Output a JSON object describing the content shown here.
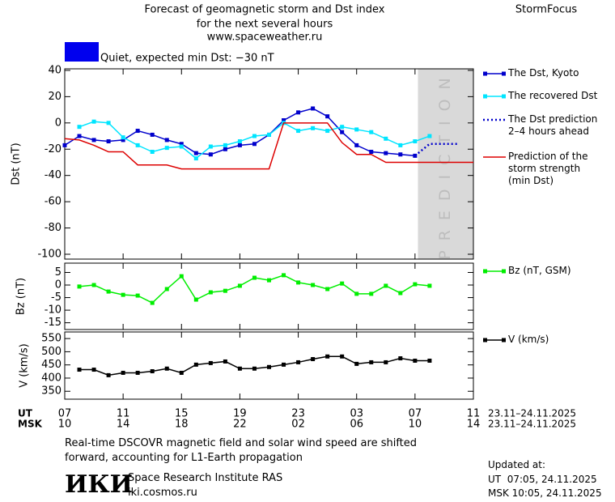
{
  "header": {
    "title_lines": [
      "Forecast of geomagnetic storm and Dst index",
      "for the next several hours",
      "www.spaceweather.ru"
    ],
    "brand": "StormFocus",
    "status": "Quiet, expected min Dst: −30 nT",
    "status_color": "#0000ee"
  },
  "chart_data": [
    {
      "type": "line",
      "y_label": "Dst (nT)",
      "xlim": [
        0,
        28
      ],
      "ylim": [
        -103.7,
        41.2
      ],
      "yticks": [
        40,
        20,
        0,
        -20,
        -40,
        -60,
        -80,
        -100
      ],
      "prediction_band": {
        "xlim": [
          24.2,
          28
        ],
        "label": "PREDICTION",
        "color": "#d9d9d9"
      },
      "series": [
        {
          "name": "The Dst, Kyoto",
          "color": "#0000cc",
          "marker": "square",
          "dash": false,
          "x": [
            0,
            1,
            2,
            3,
            4,
            5,
            6,
            7,
            8,
            9,
            10,
            11,
            12,
            13,
            14,
            15,
            16,
            17,
            18,
            19,
            20,
            21,
            22,
            23,
            24
          ],
          "values": [
            -17,
            -10,
            -13,
            -14,
            -13,
            -6,
            -9,
            -13,
            -16,
            -23,
            -24,
            -20,
            -17,
            -16,
            -9,
            2,
            8,
            11,
            5,
            -7,
            -17,
            -22,
            -23,
            -24,
            -25
          ]
        },
        {
          "name": "The recovered Dst",
          "color": "#00e5ff",
          "marker": "square",
          "dash": false,
          "x": [
            1,
            2,
            3,
            4,
            5,
            6,
            7,
            8,
            9,
            10,
            11,
            12,
            13,
            14,
            15,
            16,
            17,
            18,
            19,
            20,
            21,
            22,
            23,
            24,
            25
          ],
          "values": [
            -3,
            1,
            0,
            -11,
            -17,
            -22,
            -19,
            -18,
            -27,
            -18,
            -17,
            -14,
            -10,
            -9,
            0,
            -6,
            -4,
            -6,
            -3,
            -5,
            -7,
            -12,
            -17,
            -14,
            -10
          ]
        },
        {
          "name": "The Dst prediction\n2–4 hours ahead",
          "color": "#0000cc",
          "marker": null,
          "dash": true,
          "x": [
            24,
            25,
            26,
            27
          ],
          "values": [
            -25,
            -16,
            -16,
            -16
          ]
        },
        {
          "name": "Prediction of the\nstorm strength\n(min Dst)",
          "color": "#dd0000",
          "marker": null,
          "dash": false,
          "x": [
            0,
            1,
            2,
            3,
            4,
            5,
            7,
            8,
            14,
            15,
            18,
            19,
            20,
            21,
            22,
            28
          ],
          "values": [
            -12,
            -13,
            -17,
            -22,
            -22,
            -32,
            -32,
            -35,
            -35,
            0,
            0,
            -15,
            -24,
            -24,
            -30,
            -30
          ]
        }
      ]
    },
    {
      "type": "line",
      "y_label": "Bz (nT)",
      "xlim": [
        0,
        28
      ],
      "ylim": [
        -17.7,
        8.7
      ],
      "yticks": [
        5,
        0,
        -5,
        -10,
        -15
      ],
      "series": [
        {
          "name": "Bz (nT, GSM)",
          "color": "#00ee00",
          "marker": "square",
          "dash": false,
          "x": [
            1,
            2,
            3,
            4,
            5,
            6,
            7,
            8,
            9,
            10,
            11,
            12,
            13,
            14,
            15,
            16,
            17,
            18,
            19,
            20,
            21,
            22,
            23,
            24,
            25
          ],
          "values": [
            -0.6,
            0,
            -2.6,
            -3.9,
            -4.2,
            -7.1,
            -1.6,
            3.5,
            -5.8,
            -2.9,
            -2.3,
            -0.3,
            2.9,
            1.9,
            3.9,
            1,
            0,
            -1.6,
            0.6,
            -3.5,
            -3.5,
            -0.3,
            -3.2,
            0.3,
            -0.3
          ]
        }
      ]
    },
    {
      "type": "line",
      "y_label": "V (km/s)",
      "xlim": [
        0,
        28
      ],
      "ylim": [
        320,
        575
      ],
      "yticks": [
        550,
        500,
        450,
        400,
        350
      ],
      "xticks": [
        {
          "value": 0,
          "label": "07"
        },
        {
          "value": 4,
          "label": "11"
        },
        {
          "value": 8,
          "label": "15"
        },
        {
          "value": 12,
          "label": "19"
        },
        {
          "value": 16,
          "label": "23"
        },
        {
          "value": 20,
          "label": "03"
        },
        {
          "value": 24,
          "label": "07"
        },
        {
          "value": 28,
          "label": "11"
        }
      ],
      "x2ticks": [
        {
          "value": 0,
          "label": "10"
        },
        {
          "value": 4,
          "label": "14"
        },
        {
          "value": 8,
          "label": "18"
        },
        {
          "value": 12,
          "label": "22"
        },
        {
          "value": 16,
          "label": "02"
        },
        {
          "value": 20,
          "label": "06"
        },
        {
          "value": 24,
          "label": "10"
        },
        {
          "value": 28,
          "label": "14"
        }
      ],
      "x_label": "UT",
      "x2_label": "MSK",
      "x_range": "23.11–24.11.2025",
      "x2_range": "23.11–24.11.2025",
      "series": [
        {
          "name": "V (km/s)",
          "color": "#000000",
          "marker": "square",
          "dash": false,
          "x": [
            1,
            2,
            3,
            4,
            5,
            6,
            7,
            8,
            9,
            10,
            11,
            12,
            13,
            14,
            15,
            16,
            17,
            18,
            19,
            20,
            21,
            22,
            23,
            24,
            25
          ],
          "values": [
            432,
            432,
            411,
            420,
            420,
            426,
            436,
            420,
            451,
            457,
            463,
            436,
            436,
            442,
            451,
            460,
            472,
            482,
            482,
            454,
            460,
            460,
            475,
            466,
            466
          ]
        }
      ]
    }
  ],
  "footer": {
    "note": "Real-time DSCOVR magnetic field and solar wind speed are shifted\nforward, accounting for L1-Earth propagation",
    "logo": "ИКИ",
    "institute": "Space Research Institute RAS",
    "url": "iki.cosmos.ru",
    "updated_title": "Updated at:",
    "updated_ut": "UT  07:05, 24.11.2025",
    "updated_msk": "MSK 10:05, 24.11.2025"
  }
}
